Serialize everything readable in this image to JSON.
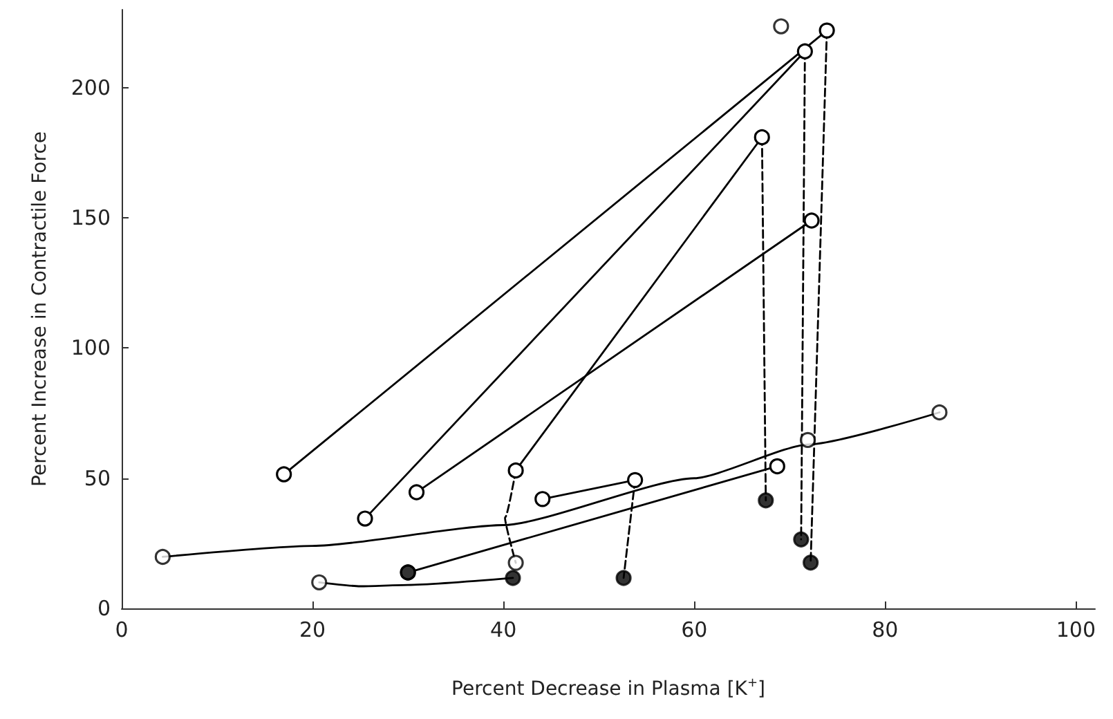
{
  "chart_data": {
    "type": "line",
    "xlabel": "Percent Decrease in Plasma [K$^{+}$]",
    "ylabel": "Percent Increase in Contractile Force",
    "xlim": [
      0,
      102
    ],
    "xticks": [
      0,
      20,
      40,
      60,
      80,
      100
    ],
    "ylim": [
      0,
      230
    ],
    "yticks": [
      0,
      50,
      100,
      150,
      200
    ],
    "grid": false,
    "marker": "circle",
    "line_style": "solid",
    "series": [
      {
        "color": "#000000",
        "x": [
          17,
          73.9
        ],
        "values": [
          51.5,
          222
        ]
      },
      {
        "color": "#000000",
        "x": [
          25.5,
          71.6
        ],
        "values": [
          34.5,
          214
        ]
      },
      {
        "color": "#000000",
        "x": [
          30.9,
          72.3
        ],
        "values": [
          44.6,
          149
        ]
      },
      {
        "color": "#000000",
        "x": [
          41.3,
          67.1
        ],
        "values": [
          53,
          181
        ]
      },
      {
        "color": "#000000",
        "marker": "none",
        "x": [
          4.3,
          20,
          40,
          60,
          72,
          85.7
        ],
        "values": [
          19.8,
          24,
          32,
          50,
          63,
          75.3
        ]
      },
      {
        "color": "#000000",
        "x": [
          44.1,
          53.8
        ],
        "values": [
          42,
          49.3
        ]
      },
      {
        "color": "#000000",
        "x": [
          30,
          68.7
        ],
        "values": [
          13.8,
          54.6
        ]
      },
      {
        "color": "#000000",
        "marker": "none",
        "x": [
          20.7,
          25,
          30,
          41
        ],
        "values": [
          10,
          8.5,
          9,
          11.7
        ]
      },
      {
        "color": "#000000",
        "marker": "none",
        "line_style": "dashed",
        "x": [
          67.1,
          67.5
        ],
        "values": [
          181,
          41.5
        ]
      },
      {
        "color": "#000000",
        "marker": "none",
        "line_style": "dashed",
        "x": [
          71.6,
          71.2
        ],
        "values": [
          214,
          26.5
        ]
      },
      {
        "color": "#000000",
        "marker": "none",
        "line_style": "dashed",
        "x": [
          73.9,
          72.2
        ],
        "values": [
          222,
          17.6
        ]
      },
      {
        "color": "#000000",
        "marker": "none",
        "line_style": "dashed",
        "x": [
          53.8,
          52.6
        ],
        "values": [
          49.3,
          11.7
        ]
      },
      {
        "color": "#000000",
        "marker": "none",
        "line_style": "dashed",
        "x": [
          41.3,
          40.2,
          41.3
        ],
        "values": [
          53,
          35,
          17.5
        ]
      },
      {
        "type": "scatter",
        "color": "#ffffff",
        "x": [
          4.3,
          85.7,
          20.7,
          69.1,
          71.9,
          41.3
        ],
        "values": [
          19.8,
          75.3,
          10,
          223.6,
          64.7,
          17.5
        ]
      },
      {
        "type": "scatter",
        "color": "#000000",
        "x": [
          30,
          41,
          52.6,
          67.5,
          71.2,
          72.2
        ],
        "values": [
          13.8,
          11.7,
          11.7,
          41.5,
          26.5,
          17.6
        ]
      }
    ]
  }
}
